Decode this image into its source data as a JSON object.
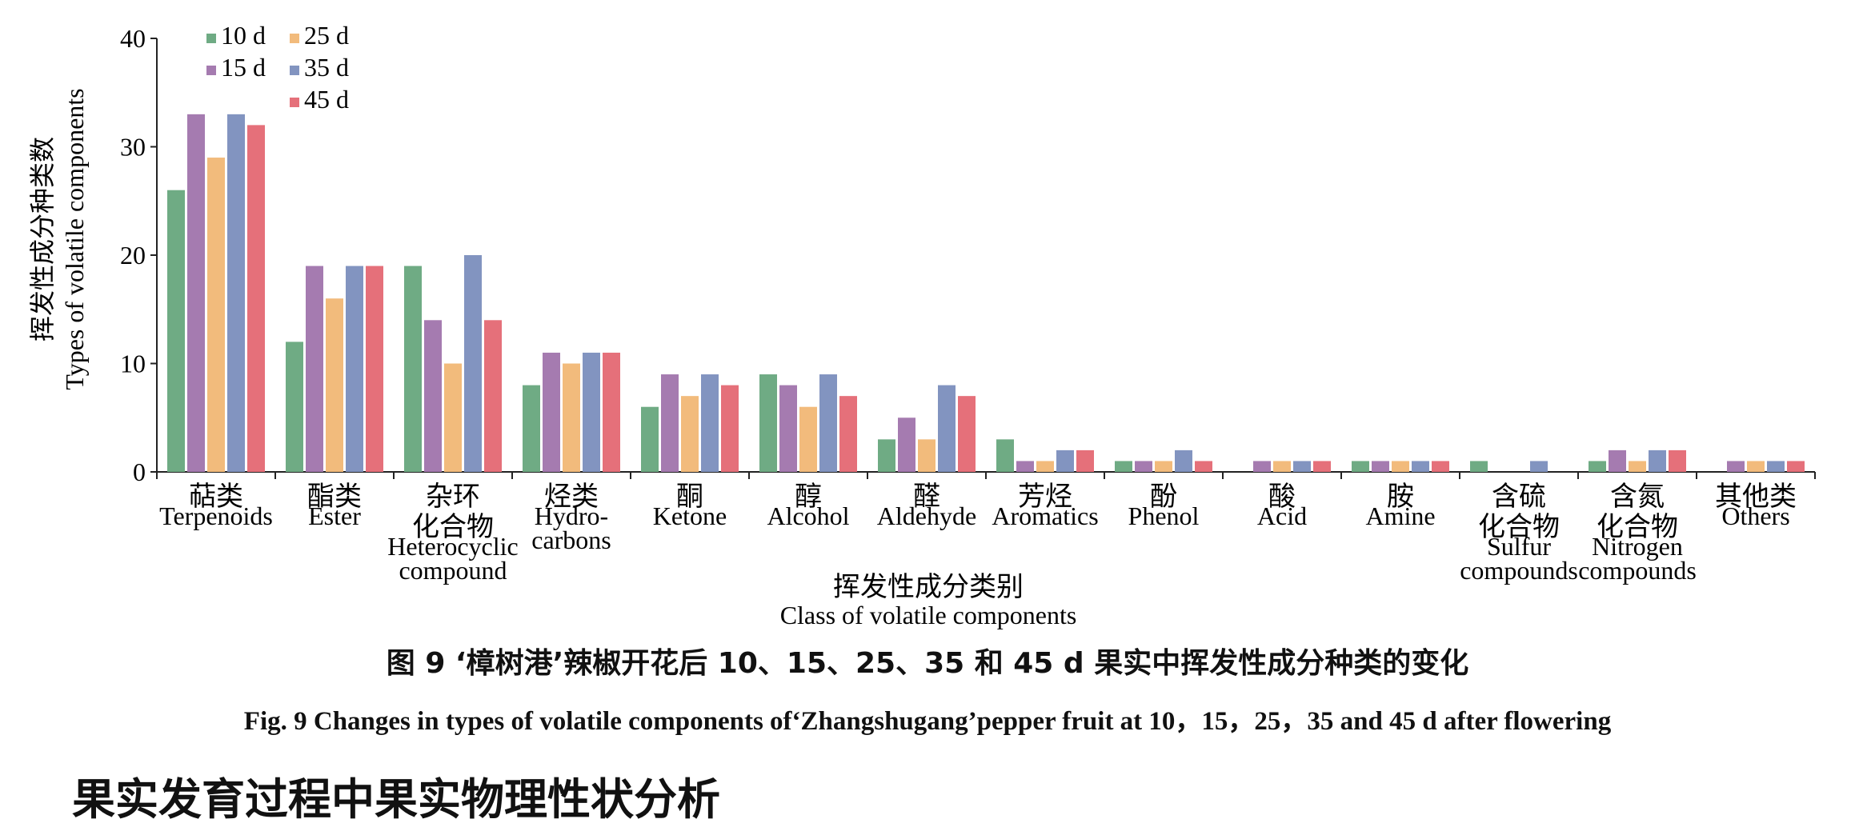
{
  "chart_data": {
    "type": "bar",
    "ylabel_cn": "挥发性成分种类数",
    "ylabel_en": "Types of volatile components",
    "xlabel_cn": "挥发性成分类别",
    "xlabel_en": "Class of volatile components",
    "ylim": [
      0,
      40
    ],
    "yticks": [
      "0",
      "10",
      "20",
      "30",
      "40"
    ],
    "categories": [
      {
        "cn": "萜类",
        "en": [
          "Terpenoids"
        ]
      },
      {
        "cn": "酯类",
        "en": [
          "Ester"
        ]
      },
      {
        "cn": [
          "杂环",
          "化合物"
        ],
        "en": [
          "Heterocyclic",
          "compound"
        ]
      },
      {
        "cn": "烃类",
        "en": [
          "Hydro-",
          "carbons"
        ]
      },
      {
        "cn": "酮",
        "en": [
          "Ketone"
        ]
      },
      {
        "cn": "醇",
        "en": [
          "Alcohol"
        ]
      },
      {
        "cn": "醛",
        "en": [
          "Aldehyde"
        ]
      },
      {
        "cn": "芳烃",
        "en": [
          "Aromatics"
        ]
      },
      {
        "cn": "酚",
        "en": [
          "Phenol"
        ]
      },
      {
        "cn": "酸",
        "en": [
          "Acid"
        ]
      },
      {
        "cn": "胺",
        "en": [
          "Amine"
        ]
      },
      {
        "cn": [
          "含硫",
          "化合物"
        ],
        "en": [
          "Sulfur",
          "compounds"
        ]
      },
      {
        "cn": [
          "含氮",
          "化合物"
        ],
        "en": [
          "Nitrogen",
          "compounds"
        ]
      },
      {
        "cn": "其他类",
        "en": [
          "Others"
        ]
      }
    ],
    "series": [
      {
        "name": "10 d",
        "color": "#6fab84",
        "values": [
          26,
          12,
          19,
          8,
          6,
          9,
          3,
          3,
          1,
          0,
          1,
          1,
          1,
          0
        ]
      },
      {
        "name": "15 d",
        "color": "#a57bb0",
        "values": [
          33,
          19,
          14,
          11,
          9,
          8,
          5,
          1,
          1,
          1,
          1,
          0,
          2,
          1
        ]
      },
      {
        "name": "25 d",
        "color": "#f2bb7c",
        "values": [
          29,
          16,
          10,
          10,
          7,
          6,
          3,
          1,
          1,
          1,
          1,
          0,
          1,
          1
        ]
      },
      {
        "name": "35 d",
        "color": "#8294c0",
        "values": [
          33,
          19,
          20,
          11,
          9,
          9,
          8,
          2,
          2,
          1,
          1,
          1,
          2,
          1
        ]
      },
      {
        "name": "45 d",
        "color": "#e5707a",
        "values": [
          32,
          19,
          14,
          11,
          8,
          7,
          7,
          2,
          1,
          1,
          1,
          0,
          2,
          1
        ]
      }
    ],
    "legend_position": "top-left",
    "grid": false
  },
  "caption": {
    "cn": "图 9 ‘樟树港’辣椒开花后 10、15、25、35 和 45 d 果实中挥发性成分种类的变化",
    "en": "Fig. 9    Changes in types of volatile components of‘Zhangshugang’pepper fruit at 10，15，25，35 and 45 d after flowering"
  },
  "bottom_fragment": "果实发育过程中果实物理性状分析"
}
